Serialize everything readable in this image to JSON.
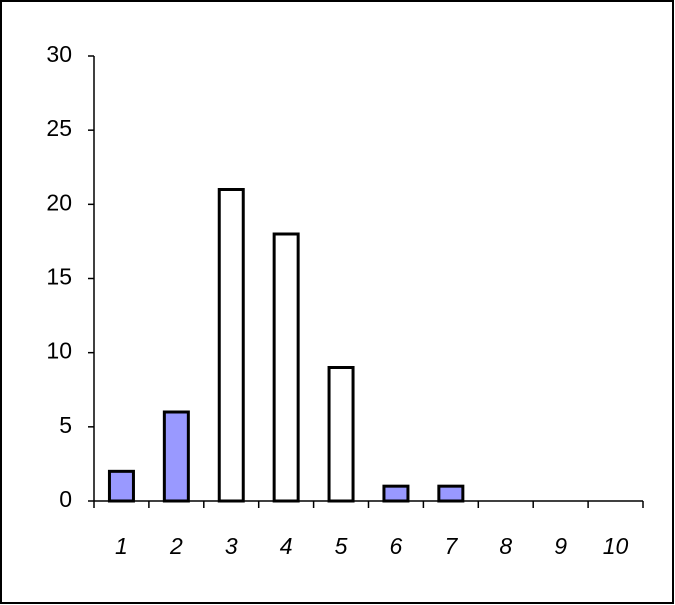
{
  "chart_data": {
    "type": "bar",
    "categories": [
      "1",
      "2",
      "3",
      "4",
      "5",
      "6",
      "7",
      "8",
      "9",
      "10"
    ],
    "values": [
      2,
      6,
      21,
      18,
      9,
      1,
      1,
      0,
      0,
      0
    ],
    "colors": [
      "#9999ff",
      "#9999ff",
      "#ffffff",
      "#ffffff",
      "#ffffff",
      "#9999ff",
      "#9999ff",
      "#9999ff",
      "#9999ff",
      "#9999ff"
    ],
    "ylim": [
      0,
      30
    ],
    "yticks": [
      0,
      5,
      10,
      15,
      20,
      25,
      30
    ],
    "grid": false
  }
}
